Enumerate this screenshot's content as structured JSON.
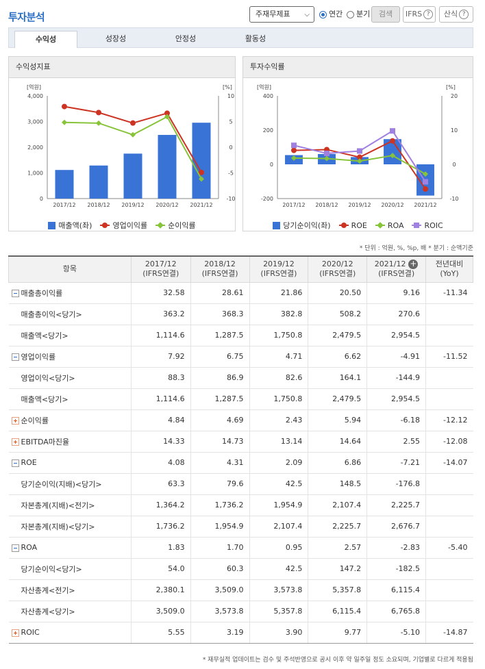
{
  "header": {
    "title": "투자분석",
    "select_value": "주재무제표",
    "radio_annual": "연간",
    "radio_quarter": "분기",
    "search_label": "검색",
    "ifrs_label": "IFRS",
    "formula_label": "산식",
    "help_glyph": "?"
  },
  "tabs": [
    "수익성",
    "성장성",
    "안정성",
    "활동성"
  ],
  "panels": {
    "left_title": "수익성지표",
    "right_title": "투자수익률"
  },
  "chart_data": [
    {
      "type": "bar",
      "title": "수익성지표",
      "categories": [
        "2017/12",
        "2018/12",
        "2019/12",
        "2020/12",
        "2021/12"
      ],
      "left_unit": "[억원]",
      "right_unit": "[%]",
      "left_ticks": [
        "4,000",
        "3,000",
        "2,000",
        "1,000",
        "0"
      ],
      "right_ticks": [
        "10",
        "5",
        "0",
        "-5",
        "-10"
      ],
      "ylim_left": [
        0,
        4000
      ],
      "ylim_right": [
        -10,
        10
      ],
      "bar_series": {
        "name": "매출액(좌)",
        "values": [
          1114.6,
          1287.5,
          1750.8,
          2479.5,
          2954.5
        ],
        "color": "#3a73d6"
      },
      "line_series": [
        {
          "name": "영업이익률",
          "values": [
            7.92,
            6.75,
            4.71,
            6.62,
            -4.91
          ],
          "color": "#cc3322",
          "marker": "circle"
        },
        {
          "name": "순이익률",
          "values": [
            4.84,
            4.69,
            2.43,
            5.94,
            -6.18
          ],
          "color": "#88c43a",
          "marker": "diamond"
        }
      ]
    },
    {
      "type": "bar",
      "title": "투자수익률",
      "categories": [
        "2017/12",
        "2018/12",
        "2019/12",
        "2020/12",
        "2021/12"
      ],
      "left_unit": "[억원]",
      "right_unit": "[%]",
      "left_ticks": [
        "400",
        "200",
        "0",
        "-200"
      ],
      "right_ticks": [
        "20",
        "10",
        "0",
        "-10"
      ],
      "ylim_left": [
        -200,
        400
      ],
      "ylim_right": [
        -10,
        20
      ],
      "bar_series": {
        "name": "당기순이익(좌)",
        "values": [
          54.0,
          60.3,
          42.5,
          147.2,
          -182.5
        ],
        "color": "#3a73d6"
      },
      "line_series": [
        {
          "name": "ROE",
          "values": [
            4.08,
            4.31,
            2.09,
            6.86,
            -7.21
          ],
          "color": "#cc3322",
          "marker": "circle"
        },
        {
          "name": "ROA",
          "values": [
            1.83,
            1.7,
            0.95,
            2.57,
            -2.83
          ],
          "color": "#88c43a",
          "marker": "diamond"
        },
        {
          "name": "ROIC",
          "values": [
            5.55,
            3.19,
            3.9,
            9.77,
            -5.1
          ],
          "color": "#a080e0",
          "marker": "square"
        }
      ]
    }
  ],
  "unit_note": "* 단위 : 억원, %, %p, 배   * 분기 : 순액기준",
  "table": {
    "headers": [
      {
        "top": "항목",
        "bottom": ""
      },
      {
        "top": "2017/12",
        "bottom": "(IFRS연결)"
      },
      {
        "top": "2018/12",
        "bottom": "(IFRS연결)"
      },
      {
        "top": "2019/12",
        "bottom": "(IFRS연결)"
      },
      {
        "top": "2020/12",
        "bottom": "(IFRS연결)"
      },
      {
        "top": "2021/12",
        "bottom": "(IFRS연결)"
      },
      {
        "top": "전년대비",
        "bottom": "(YoY)"
      }
    ],
    "rows": [
      {
        "label": "매출총이익률",
        "icon": "minus",
        "sub": false,
        "values": [
          "32.58",
          "28.61",
          "21.86",
          "20.50",
          "9.16"
        ],
        "yoy": "-11.34"
      },
      {
        "label": "매출총이익<당기>",
        "icon": "",
        "sub": true,
        "values": [
          "363.2",
          "368.3",
          "382.8",
          "508.2",
          "270.6"
        ],
        "yoy": ""
      },
      {
        "label": "매출액<당기>",
        "icon": "",
        "sub": true,
        "values": [
          "1,114.6",
          "1,287.5",
          "1,750.8",
          "2,479.5",
          "2,954.5"
        ],
        "yoy": ""
      },
      {
        "label": "영업이익률",
        "icon": "minus",
        "sub": false,
        "values": [
          "7.92",
          "6.75",
          "4.71",
          "6.62",
          "-4.91"
        ],
        "yoy": "-11.52"
      },
      {
        "label": "영업이익<당기>",
        "icon": "",
        "sub": true,
        "values": [
          "88.3",
          "86.9",
          "82.6",
          "164.1",
          "-144.9"
        ],
        "yoy": ""
      },
      {
        "label": "매출액<당기>",
        "icon": "",
        "sub": true,
        "values": [
          "1,114.6",
          "1,287.5",
          "1,750.8",
          "2,479.5",
          "2,954.5"
        ],
        "yoy": ""
      },
      {
        "label": "순이익률",
        "icon": "plus",
        "sub": false,
        "values": [
          "4.84",
          "4.69",
          "2.43",
          "5.94",
          "-6.18"
        ],
        "yoy": "-12.12"
      },
      {
        "label": "EBITDA마진율",
        "icon": "plus",
        "sub": false,
        "values": [
          "14.33",
          "14.73",
          "13.14",
          "14.64",
          "2.55"
        ],
        "yoy": "-12.08"
      },
      {
        "label": "ROE",
        "icon": "minus",
        "sub": false,
        "values": [
          "4.08",
          "4.31",
          "2.09",
          "6.86",
          "-7.21"
        ],
        "yoy": "-14.07"
      },
      {
        "label": "당기순이익(지배)<당기>",
        "icon": "",
        "sub": true,
        "values": [
          "63.3",
          "79.6",
          "42.5",
          "148.5",
          "-176.8"
        ],
        "yoy": ""
      },
      {
        "label": "자본총계(지배)<전기>",
        "icon": "",
        "sub": true,
        "values": [
          "1,364.2",
          "1,736.2",
          "1,954.9",
          "2,107.4",
          "2,225.7"
        ],
        "yoy": ""
      },
      {
        "label": "자본총계(지배)<당기>",
        "icon": "",
        "sub": true,
        "values": [
          "1,736.2",
          "1,954.9",
          "2,107.4",
          "2,225.7",
          "2,676.7"
        ],
        "yoy": ""
      },
      {
        "label": "ROA",
        "icon": "minus",
        "sub": false,
        "values": [
          "1.83",
          "1.70",
          "0.95",
          "2.57",
          "-2.83"
        ],
        "yoy": "-5.40"
      },
      {
        "label": "당기순이익<당기>",
        "icon": "",
        "sub": true,
        "values": [
          "54.0",
          "60.3",
          "42.5",
          "147.2",
          "-182.5"
        ],
        "yoy": ""
      },
      {
        "label": "자산총계<전기>",
        "icon": "",
        "sub": true,
        "values": [
          "2,380.1",
          "3,509.0",
          "3,573.8",
          "5,357.8",
          "6,115.4"
        ],
        "yoy": ""
      },
      {
        "label": "자산총계<당기>",
        "icon": "",
        "sub": true,
        "values": [
          "3,509.0",
          "3,573.8",
          "5,357.8",
          "6,115.4",
          "6,765.8"
        ],
        "yoy": ""
      },
      {
        "label": "ROIC",
        "icon": "plus",
        "sub": false,
        "values": [
          "5.55",
          "3.19",
          "3.90",
          "9.77",
          "-5.10"
        ],
        "yoy": "-14.87"
      }
    ]
  },
  "footer_note": "* 재무실적 업데이트는 검수 및 주석반영으로 공시 이후 약 일주일 정도 소요되며, 기업별로 다르게 적용됨"
}
